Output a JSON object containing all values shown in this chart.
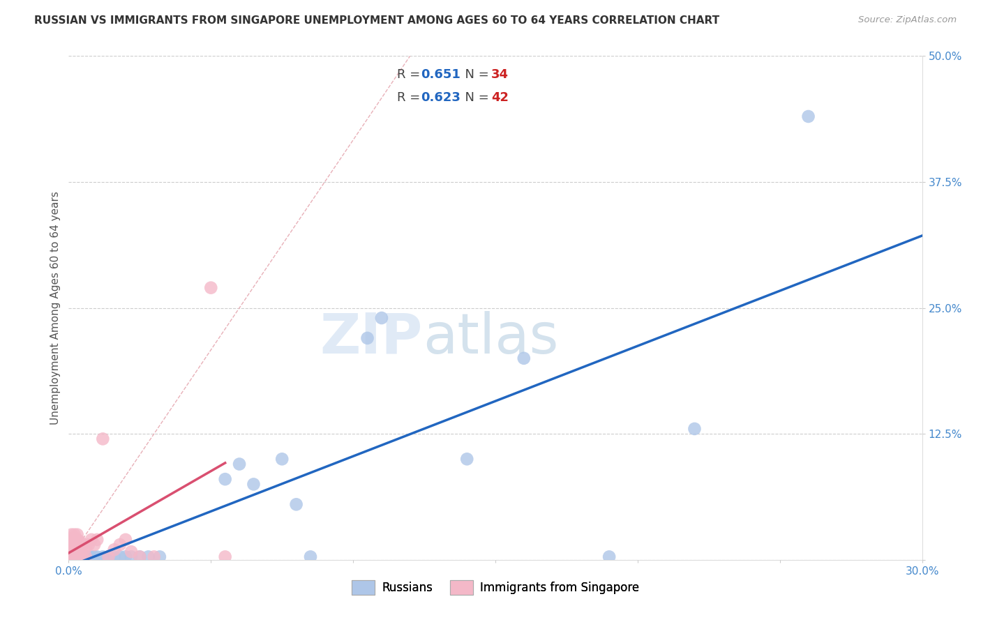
{
  "title": "RUSSIAN VS IMMIGRANTS FROM SINGAPORE UNEMPLOYMENT AMONG AGES 60 TO 64 YEARS CORRELATION CHART",
  "source": "Source: ZipAtlas.com",
  "ylabel_label": "Unemployment Among Ages 60 to 64 years",
  "xlim": [
    0,
    0.3
  ],
  "ylim": [
    0,
    0.5
  ],
  "russian_R": 0.651,
  "russian_N": 34,
  "singapore_R": 0.623,
  "singapore_N": 42,
  "russian_color": "#aec6e8",
  "russian_line_color": "#2166c0",
  "singapore_color": "#f4b8c8",
  "singapore_line_color": "#d94f70",
  "russian_scatter_x": [
    0.001,
    0.002,
    0.003,
    0.003,
    0.004,
    0.005,
    0.005,
    0.006,
    0.007,
    0.008,
    0.009,
    0.01,
    0.012,
    0.014,
    0.016,
    0.018,
    0.02,
    0.022,
    0.025,
    0.028,
    0.032,
    0.055,
    0.06,
    0.065,
    0.075,
    0.08,
    0.085,
    0.105,
    0.11,
    0.14,
    0.16,
    0.19,
    0.22,
    0.26
  ],
  "russian_scatter_y": [
    0.003,
    0.003,
    0.003,
    0.003,
    0.003,
    0.003,
    0.003,
    0.003,
    0.003,
    0.003,
    0.003,
    0.003,
    0.003,
    0.003,
    0.003,
    0.003,
    0.003,
    0.003,
    0.003,
    0.003,
    0.003,
    0.08,
    0.095,
    0.075,
    0.1,
    0.055,
    0.003,
    0.22,
    0.24,
    0.1,
    0.2,
    0.003,
    0.13,
    0.44
  ],
  "singapore_scatter_x": [
    0.001,
    0.001,
    0.001,
    0.001,
    0.001,
    0.001,
    0.001,
    0.001,
    0.001,
    0.002,
    0.002,
    0.002,
    0.002,
    0.002,
    0.002,
    0.002,
    0.003,
    0.003,
    0.003,
    0.003,
    0.003,
    0.004,
    0.004,
    0.004,
    0.005,
    0.005,
    0.006,
    0.006,
    0.007,
    0.008,
    0.009,
    0.01,
    0.012,
    0.014,
    0.016,
    0.018,
    0.02,
    0.022,
    0.025,
    0.03,
    0.05,
    0.055
  ],
  "singapore_scatter_y": [
    0.003,
    0.006,
    0.008,
    0.01,
    0.012,
    0.015,
    0.018,
    0.02,
    0.025,
    0.003,
    0.008,
    0.012,
    0.015,
    0.018,
    0.022,
    0.025,
    0.003,
    0.01,
    0.015,
    0.02,
    0.025,
    0.003,
    0.01,
    0.018,
    0.003,
    0.015,
    0.003,
    0.012,
    0.015,
    0.02,
    0.015,
    0.02,
    0.12,
    0.003,
    0.01,
    0.015,
    0.02,
    0.008,
    0.003,
    0.003,
    0.27,
    0.003
  ],
  "watermark_zip": "ZIP",
  "watermark_atlas": "atlas",
  "background_color": "#ffffff",
  "grid_color": "#cccccc",
  "ytick_vals": [
    0.0,
    0.125,
    0.25,
    0.375,
    0.5
  ],
  "ytick_labels": [
    "",
    "12.5%",
    "25.0%",
    "37.5%",
    "50.0%"
  ],
  "xtick_vals": [
    0.0,
    0.05,
    0.1,
    0.15,
    0.2,
    0.25,
    0.3
  ],
  "xtick_labels": [
    "0.0%",
    "",
    "",
    "",
    "",
    "",
    "30.0%"
  ]
}
